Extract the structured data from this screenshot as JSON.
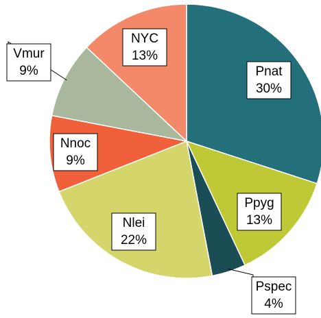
{
  "chart_data": {
    "type": "pie",
    "categories": [
      "Pnat",
      "Ppyg",
      "Pspec",
      "Nlei",
      "Nnoc",
      "Vmur",
      "NYC"
    ],
    "values": [
      30,
      13,
      4,
      22,
      9,
      9,
      13
    ],
    "value_labels": [
      "30%",
      "13%",
      "4%",
      "22%",
      "9%",
      "9%",
      "13%"
    ],
    "colors": [
      "#23707a",
      "#bfc935",
      "#1b4d54",
      "#d4d56a",
      "#f0603a",
      "#a9b89c",
      "#f4896a"
    ]
  }
}
